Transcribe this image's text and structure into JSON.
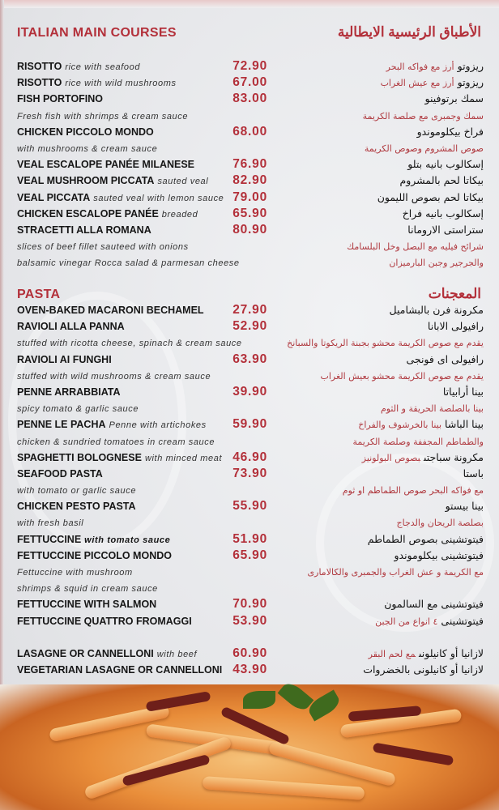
{
  "main": {
    "title_en": "ITALIAN MAIN COURSES",
    "title_ar": "الأطباق الرئيسية الايطالية",
    "rows": [
      {
        "en": "RISOTTO",
        "desc": "rice with seafood",
        "price": "72.90",
        "ar": "ريزوتو",
        "ar_red": "أرز مع فواكه البحر"
      },
      {
        "en": "RISOTTO",
        "desc": "rice with wild mushrooms",
        "price": "67.00",
        "ar": "ريزوتو",
        "ar_red": "أرز مع عيش الغراب"
      },
      {
        "en": "FISH PORTOFINO",
        "price": "83.00",
        "ar": "سمك برتوفينو"
      },
      {
        "desc": "Fresh fish with shrimps & cream sauce",
        "ar_red": "سمك وجمبرى مع صلصة الكريمة"
      },
      {
        "en": "CHICKEN PICCOLO MONDO",
        "price": "68.00",
        "ar": "فراخ بيكلوموندو"
      },
      {
        "desc": "with mushrooms & cream sauce",
        "ar_red": "صوص المشروم وصوص الكريمة"
      },
      {
        "en": "VEAL ESCALOPE PANÉE MILANESE",
        "price": "76.90",
        "ar": "إسكالوب بانيه بتلو"
      },
      {
        "en": "VEAL MUSHROOM PICCATA",
        "desc": "sauted veal",
        "price": "82.90",
        "ar": "بيكاتا لحم بالمشروم"
      },
      {
        "en": "VEAL PICCATA",
        "desc": "sauted veal with lemon sauce",
        "price": "79.00",
        "ar": "بيكاتا لحم بصوص الليمون"
      },
      {
        "en": "CHICKEN ESCALOPE PANÉE",
        "desc": "breaded",
        "price": "65.90",
        "ar": "إسكالوب بانيه فراخ"
      },
      {
        "en": "STRACETTI ALLA ROMANA",
        "price": "80.90",
        "ar": "ستراستى الارومانا"
      },
      {
        "desc": "slices of beef fillet sauteed with onions",
        "ar_red": "شرائح فيليه مع البصل وخل البلسامك"
      },
      {
        "desc": "balsamic vinegar Rocca salad & parmesan cheese",
        "ar_red": "والجرجير وجبن البارميزان"
      }
    ]
  },
  "pasta": {
    "title_en": "PASTA",
    "title_ar": "المعجنات",
    "rows": [
      {
        "en": "OVEN-BAKED MACARONI BECHAMEL",
        "price": "27.90",
        "ar": "مكرونة فرن بالبشاميل"
      },
      {
        "en": "RAVIOLI ALLA PANNA",
        "price": "52.90",
        "ar": "رافيولى الابانا"
      },
      {
        "desc": "stuffed with ricotta cheese, spinach & cream sauce",
        "ar_red": "يقدم مع صوص الكريمة محشو بجبنة الريكوتا والسبانخ"
      },
      {
        "en": "RAVIOLI AI FUNGHI",
        "price": "63.90",
        "ar": "رافيولى اى فونجى"
      },
      {
        "desc": "stuffed with wild mushrooms & cream sauce",
        "ar_red": "يقدم مع صوص الكريمة محشو بعيش الغراب"
      },
      {
        "en": "PENNE ARRABBIATA",
        "price": "39.90",
        "ar": "بينا أرابياتا"
      },
      {
        "desc": "spicy tomato & garlic sauce",
        "ar_red": "بينا بالصلصة الحريقة و الثوم"
      },
      {
        "en": "PENNE LE PACHA",
        "desc": "Penne with artichokes",
        "price": "59.90",
        "ar": "بينا الباشا",
        "ar_red": "بينا بالخرشوف والفراخ"
      },
      {
        "desc": "chicken & sundried tomatoes in cream sauce",
        "ar_red": "والطماطم المجففة وصلصة الكريمة"
      },
      {
        "en": "SPAGHETTI BOLOGNESE",
        "desc": "with minced meat",
        "price": "46.90",
        "ar": "مكرونة سباجتى",
        "ar_red": "بصوص البولونيز"
      },
      {
        "en": "SEAFOOD PASTA",
        "price": "73.90",
        "ar": "باستا"
      },
      {
        "desc": "with tomato or garlic sauce",
        "ar_red": "مع فواكه البحر صوص الطماطم او ثوم"
      },
      {
        "en": "CHICKEN PESTO PASTA",
        "price": "55.90",
        "ar": "بينا بيستو"
      },
      {
        "desc": "with fresh basil",
        "ar_red": "بصلصة الريحان والدجاج"
      },
      {
        "en": "FETTUCCINE",
        "desc": "with tomato sauce",
        "desc_bold": true,
        "price": "51.90",
        "ar": "فيتوتشينى بصوص الطماطم"
      },
      {
        "en": "FETTUCCINE PICCOLO MONDO",
        "price": "65.90",
        "ar": "فيتوتشينى بيكلوموندو"
      },
      {
        "desc": "Fettuccine with mushroom",
        "ar_red": "مع الكريمة و عش الغراب والجمبرى والكالامارى"
      },
      {
        "desc": " shrimps & squid in cream sauce"
      },
      {
        "en": "FETTUCCINE WITH SALMON",
        "price": "70.90",
        "ar": "فيتوتشينى مع السالمون"
      },
      {
        "en": "FETTUCCINE QUATTRO FROMAGGI",
        "price": "53.90",
        "ar": "فيتوتشينى",
        "ar_red": "٤ انواع من الجبن"
      },
      {},
      {
        "en": "LASAGNE OR CANNELLONI",
        "desc": "with beef",
        "price": "60.90",
        "ar": "لازانيا أو كانيلونى",
        "ar_red": "مع لحم البقر"
      },
      {
        "en": "VEGETARIAN LASAGNE OR CANNELLONI",
        "price": "43.90",
        "ar": "لازانيا أو كانيلونى بالخضروات"
      }
    ]
  },
  "colors": {
    "accent": "#b3303a",
    "text": "#161616",
    "background": "#e6e7ea"
  }
}
